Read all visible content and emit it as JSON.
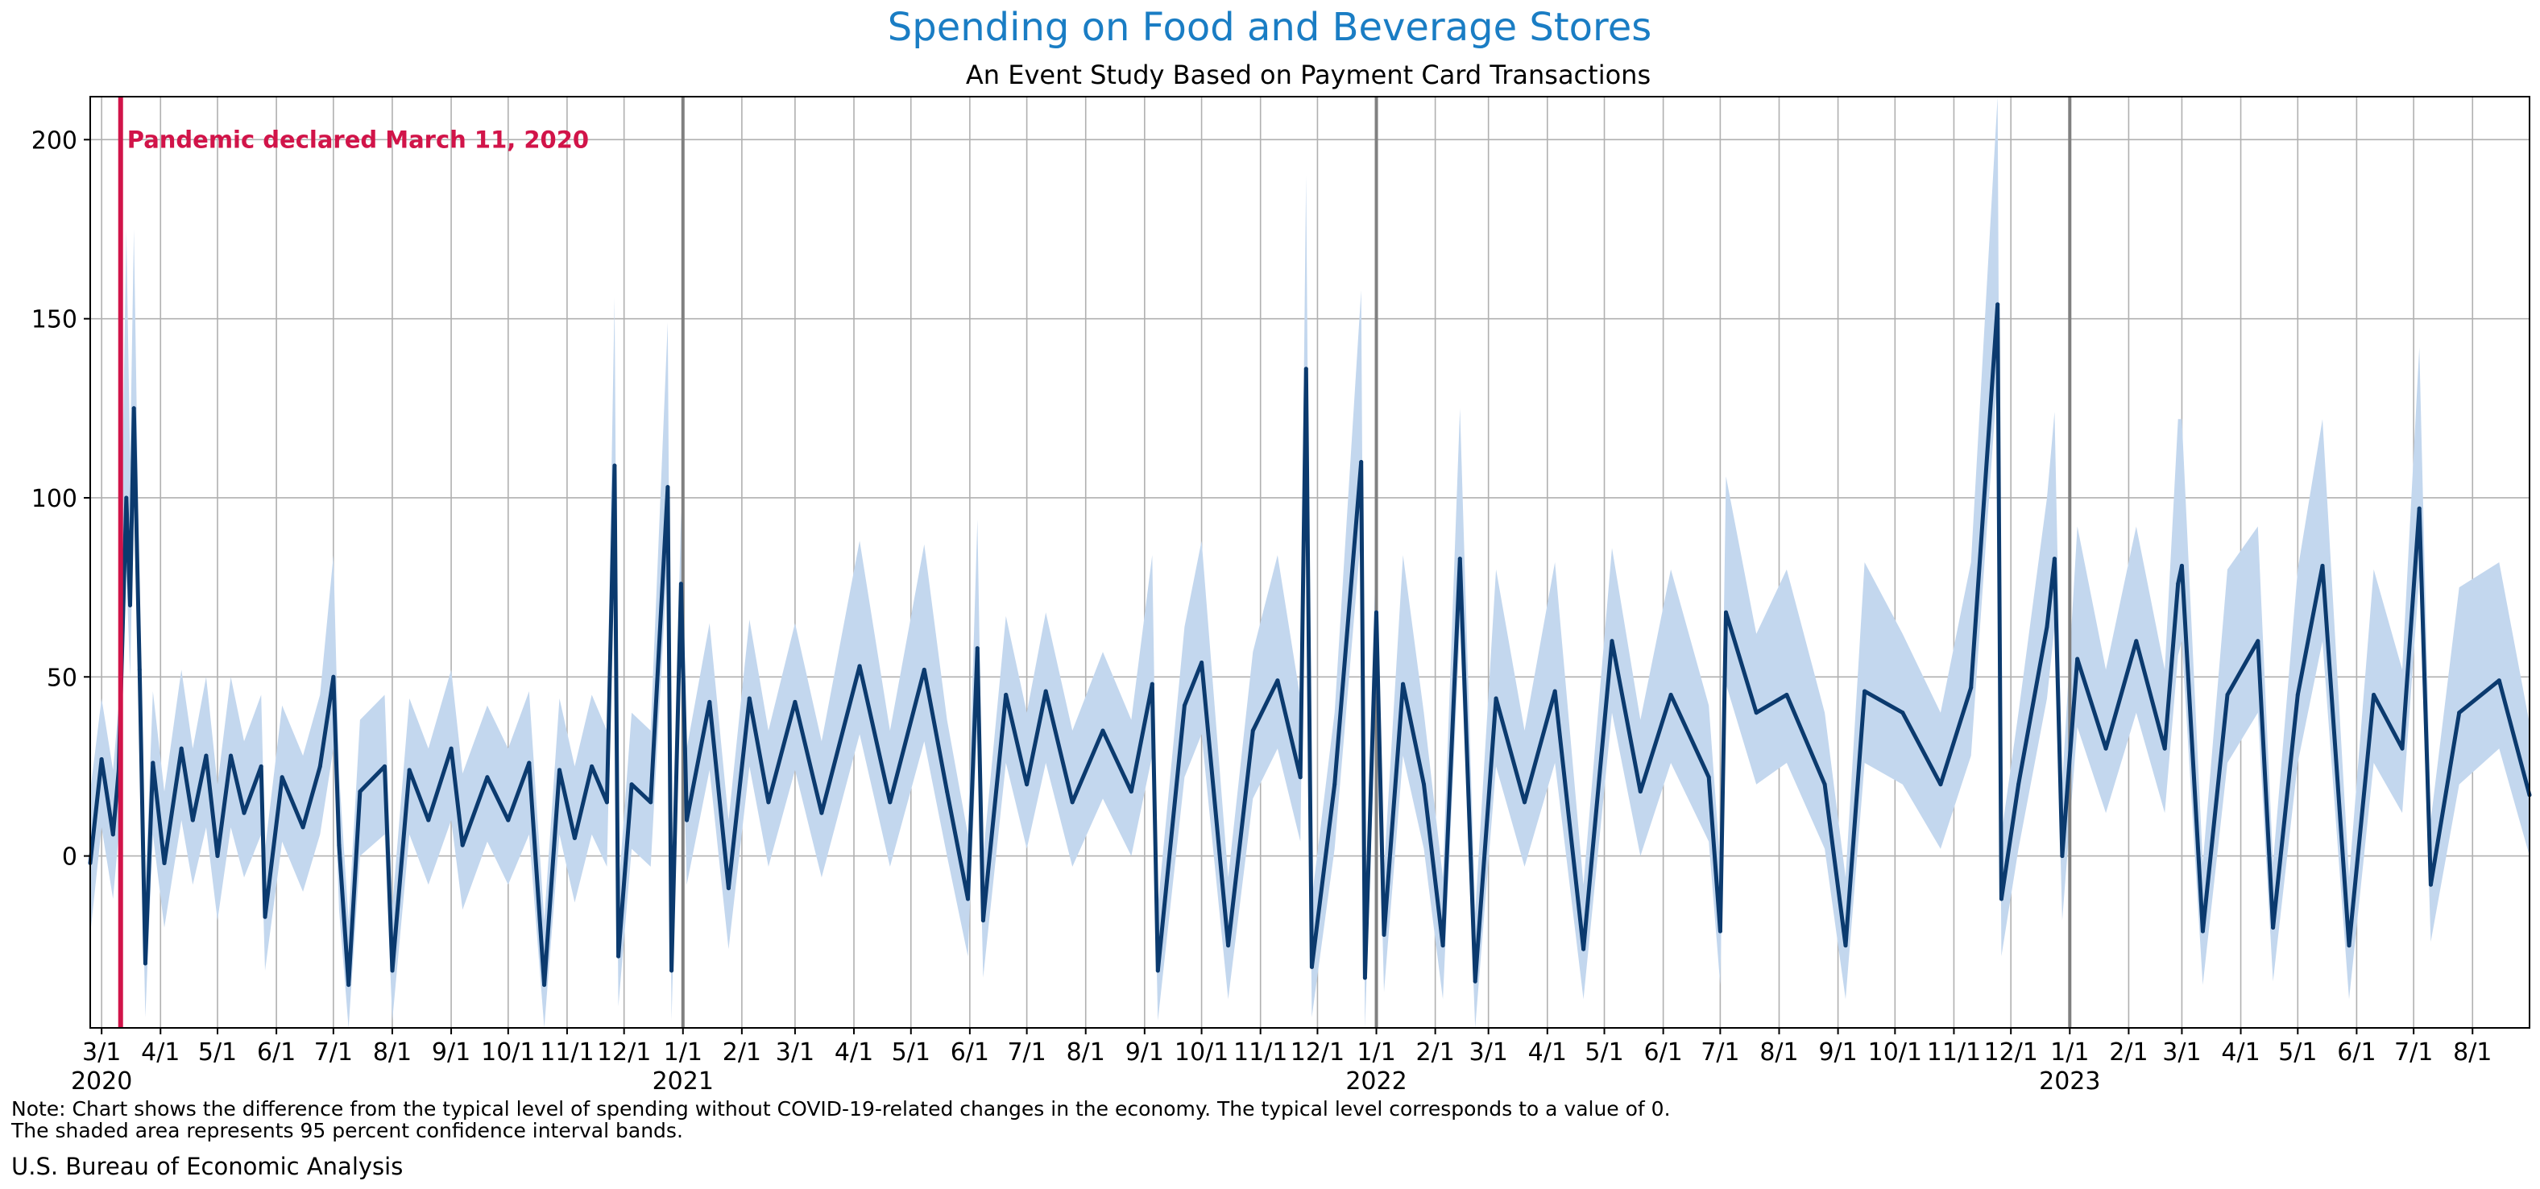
{
  "chart_data": {
    "type": "line",
    "title": "Spending on Food and Beverage Stores",
    "subtitle": "An Event Study Based on Payment Card Transactions",
    "xlabel": "",
    "ylabel": "",
    "x_range": [
      "2020-02-24",
      "2023-08-31"
    ],
    "ylim": [
      -48,
      212
    ],
    "y_ticks": [
      0,
      50,
      100,
      150,
      200
    ],
    "x_ticks": [
      {
        "date": "2020-03-01",
        "label": "3/1",
        "year": "2020"
      },
      {
        "date": "2020-04-01",
        "label": "4/1"
      },
      {
        "date": "2020-05-01",
        "label": "5/1"
      },
      {
        "date": "2020-06-01",
        "label": "6/1"
      },
      {
        "date": "2020-07-01",
        "label": "7/1"
      },
      {
        "date": "2020-08-01",
        "label": "8/1"
      },
      {
        "date": "2020-09-01",
        "label": "9/1"
      },
      {
        "date": "2020-10-01",
        "label": "10/1"
      },
      {
        "date": "2020-11-01",
        "label": "11/1"
      },
      {
        "date": "2020-12-01",
        "label": "12/1"
      },
      {
        "date": "2021-01-01",
        "label": "1/1",
        "year": "2021"
      },
      {
        "date": "2021-02-01",
        "label": "2/1"
      },
      {
        "date": "2021-03-01",
        "label": "3/1"
      },
      {
        "date": "2021-04-01",
        "label": "4/1"
      },
      {
        "date": "2021-05-01",
        "label": "5/1"
      },
      {
        "date": "2021-06-01",
        "label": "6/1"
      },
      {
        "date": "2021-07-01",
        "label": "7/1"
      },
      {
        "date": "2021-08-01",
        "label": "8/1"
      },
      {
        "date": "2021-09-01",
        "label": "9/1"
      },
      {
        "date": "2021-10-01",
        "label": "10/1"
      },
      {
        "date": "2021-11-01",
        "label": "11/1"
      },
      {
        "date": "2021-12-01",
        "label": "12/1"
      },
      {
        "date": "2022-01-01",
        "label": "1/1",
        "year": "2022"
      },
      {
        "date": "2022-02-01",
        "label": "2/1"
      },
      {
        "date": "2022-03-01",
        "label": "3/1"
      },
      {
        "date": "2022-04-01",
        "label": "4/1"
      },
      {
        "date": "2022-05-01",
        "label": "5/1"
      },
      {
        "date": "2022-06-01",
        "label": "6/1"
      },
      {
        "date": "2022-07-01",
        "label": "7/1"
      },
      {
        "date": "2022-08-01",
        "label": "8/1"
      },
      {
        "date": "2022-09-01",
        "label": "9/1"
      },
      {
        "date": "2022-10-01",
        "label": "10/1"
      },
      {
        "date": "2022-11-01",
        "label": "11/1"
      },
      {
        "date": "2022-12-01",
        "label": "12/1"
      },
      {
        "date": "2023-01-01",
        "label": "1/1",
        "year": "2023"
      },
      {
        "date": "2023-02-01",
        "label": "2/1"
      },
      {
        "date": "2023-03-01",
        "label": "3/1"
      },
      {
        "date": "2023-04-01",
        "label": "4/1"
      },
      {
        "date": "2023-05-01",
        "label": "5/1"
      },
      {
        "date": "2023-06-01",
        "label": "6/1"
      },
      {
        "date": "2023-07-01",
        "label": "7/1"
      },
      {
        "date": "2023-08-01",
        "label": "8/1"
      }
    ],
    "year_boundaries": [
      "2021-01-01",
      "2022-01-01",
      "2023-01-01"
    ],
    "event": {
      "date": "2020-03-11",
      "label": "Pandemic declared March 11, 2020"
    },
    "grid": true,
    "series": [
      {
        "points": [
          [
            "2020-02-24",
            -2,
            -22,
            18
          ],
          [
            "2020-03-01",
            27,
            8,
            44
          ],
          [
            "2020-03-07",
            6,
            -12,
            24
          ],
          [
            "2020-03-10",
            24,
            6,
            42
          ],
          [
            "2020-03-14",
            100,
            80,
            175
          ],
          [
            "2020-03-16",
            70,
            50,
            110
          ],
          [
            "2020-03-18",
            125,
            100,
            175
          ],
          [
            "2020-03-21",
            52,
            32,
            72
          ],
          [
            "2020-03-24",
            -30,
            -45,
            -10
          ],
          [
            "2020-03-28",
            26,
            6,
            46
          ],
          [
            "2020-04-03",
            -2,
            -20,
            18
          ],
          [
            "2020-04-12",
            30,
            10,
            52
          ],
          [
            "2020-04-18",
            10,
            -8,
            30
          ],
          [
            "2020-04-25",
            28,
            8,
            50
          ],
          [
            "2020-05-01",
            0,
            -18,
            20
          ],
          [
            "2020-05-08",
            28,
            8,
            50
          ],
          [
            "2020-05-15",
            12,
            -6,
            32
          ],
          [
            "2020-05-24",
            25,
            6,
            45
          ],
          [
            "2020-05-26",
            -17,
            -32,
            2
          ],
          [
            "2020-06-04",
            22,
            4,
            42
          ],
          [
            "2020-06-15",
            8,
            -10,
            28
          ],
          [
            "2020-06-24",
            25,
            6,
            45
          ],
          [
            "2020-07-01",
            50,
            30,
            84
          ],
          [
            "2020-07-04",
            3,
            -15,
            23
          ],
          [
            "2020-07-09",
            -36,
            -48,
            -18
          ],
          [
            "2020-07-15",
            18,
            0,
            38
          ],
          [
            "2020-07-28",
            25,
            6,
            45
          ],
          [
            "2020-08-01",
            -32,
            -46,
            -14
          ],
          [
            "2020-08-10",
            24,
            6,
            44
          ],
          [
            "2020-08-20",
            10,
            -8,
            30
          ],
          [
            "2020-09-01",
            30,
            10,
            52
          ],
          [
            "2020-09-07",
            3,
            -15,
            23
          ],
          [
            "2020-09-20",
            22,
            4,
            42
          ],
          [
            "2020-10-01",
            10,
            -8,
            30
          ],
          [
            "2020-10-12",
            26,
            6,
            46
          ],
          [
            "2020-10-20",
            -36,
            -48,
            -18
          ],
          [
            "2020-10-28",
            24,
            6,
            44
          ],
          [
            "2020-11-05",
            5,
            -13,
            25
          ],
          [
            "2020-11-14",
            25,
            6,
            45
          ],
          [
            "2020-11-22",
            15,
            -3,
            35
          ],
          [
            "2020-11-26",
            109,
            90,
            156
          ],
          [
            "2020-11-28",
            -28,
            -42,
            -10
          ],
          [
            "2020-12-05",
            20,
            2,
            40
          ],
          [
            "2020-12-15",
            15,
            -3,
            35
          ],
          [
            "2020-12-24",
            103,
            84,
            149
          ],
          [
            "2020-12-26",
            -32,
            -46,
            -14
          ],
          [
            "2020-12-31",
            76,
            56,
            96
          ],
          [
            "2021-01-03",
            10,
            -8,
            30
          ],
          [
            "2021-01-15",
            43,
            24,
            65
          ],
          [
            "2021-01-25",
            -9,
            -26,
            10
          ],
          [
            "2021-02-05",
            44,
            25,
            66
          ],
          [
            "2021-02-15",
            15,
            -3,
            35
          ],
          [
            "2021-03-01",
            43,
            24,
            65
          ],
          [
            "2021-03-15",
            12,
            -6,
            32
          ],
          [
            "2021-04-04",
            53,
            34,
            88
          ],
          [
            "2021-04-20",
            15,
            -3,
            35
          ],
          [
            "2021-05-08",
            52,
            32,
            87
          ],
          [
            "2021-05-20",
            18,
            0,
            38
          ],
          [
            "2021-05-31",
            -12,
            -28,
            6
          ],
          [
            "2021-06-05",
            58,
            38,
            94
          ],
          [
            "2021-06-08",
            -18,
            -34,
            0
          ],
          [
            "2021-06-20",
            45,
            26,
            67
          ],
          [
            "2021-07-01",
            20,
            2,
            40
          ],
          [
            "2021-07-11",
            46,
            26,
            68
          ],
          [
            "2021-07-25",
            15,
            -3,
            35
          ],
          [
            "2021-08-10",
            35,
            16,
            57
          ],
          [
            "2021-08-25",
            18,
            0,
            38
          ],
          [
            "2021-09-05",
            48,
            28,
            84
          ],
          [
            "2021-09-08",
            -32,
            -46,
            -14
          ],
          [
            "2021-09-22",
            42,
            22,
            64
          ],
          [
            "2021-10-01",
            54,
            34,
            88
          ],
          [
            "2021-10-15",
            -25,
            -40,
            -6
          ],
          [
            "2021-10-28",
            35,
            16,
            57
          ],
          [
            "2021-11-10",
            49,
            30,
            84
          ],
          [
            "2021-11-22",
            22,
            4,
            44
          ],
          [
            "2021-11-25",
            136,
            116,
            190
          ],
          [
            "2021-11-28",
            -31,
            -45,
            -12
          ],
          [
            "2021-12-10",
            20,
            2,
            40
          ],
          [
            "2021-12-24",
            110,
            90,
            158
          ],
          [
            "2021-12-26",
            -34,
            -48,
            -16
          ],
          [
            "2022-01-01",
            68,
            48,
            88
          ],
          [
            "2022-01-05",
            -22,
            -38,
            -4
          ],
          [
            "2022-01-15",
            48,
            28,
            84
          ],
          [
            "2022-01-26",
            20,
            2,
            40
          ],
          [
            "2022-02-05",
            -25,
            -40,
            -6
          ],
          [
            "2022-02-14",
            83,
            64,
            125
          ],
          [
            "2022-02-22",
            -35,
            -48,
            -16
          ],
          [
            "2022-03-05",
            44,
            25,
            80
          ],
          [
            "2022-03-20",
            15,
            -3,
            35
          ],
          [
            "2022-04-05",
            46,
            26,
            82
          ],
          [
            "2022-04-20",
            -26,
            -40,
            -8
          ],
          [
            "2022-05-05",
            60,
            40,
            86
          ],
          [
            "2022-05-20",
            18,
            0,
            38
          ],
          [
            "2022-06-05",
            45,
            26,
            80
          ],
          [
            "2022-06-25",
            22,
            4,
            42
          ],
          [
            "2022-07-01",
            -21,
            -36,
            -2
          ],
          [
            "2022-07-04",
            68,
            48,
            106
          ],
          [
            "2022-07-20",
            40,
            20,
            62
          ],
          [
            "2022-08-05",
            45,
            26,
            80
          ],
          [
            "2022-08-25",
            20,
            2,
            40
          ],
          [
            "2022-09-05",
            -25,
            -40,
            -6
          ],
          [
            "2022-09-15",
            46,
            26,
            82
          ],
          [
            "2022-10-05",
            40,
            20,
            62
          ],
          [
            "2022-10-25",
            20,
            2,
            40
          ],
          [
            "2022-11-10",
            47,
            28,
            82
          ],
          [
            "2022-11-24",
            154,
            134,
            212
          ],
          [
            "2022-11-26",
            -12,
            -28,
            6
          ],
          [
            "2022-12-05",
            20,
            2,
            40
          ],
          [
            "2022-12-20",
            64,
            44,
            100
          ],
          [
            "2022-12-24",
            83,
            64,
            124
          ],
          [
            "2022-12-28",
            0,
            -18,
            20
          ],
          [
            "2023-01-05",
            55,
            36,
            92
          ],
          [
            "2023-01-20",
            30,
            12,
            52
          ],
          [
            "2023-02-05",
            60,
            40,
            92
          ],
          [
            "2023-02-20",
            30,
            12,
            52
          ],
          [
            "2023-02-27",
            76,
            56,
            122
          ],
          [
            "2023-03-01",
            81,
            60,
            122
          ],
          [
            "2023-03-12",
            -21,
            -36,
            -2
          ],
          [
            "2023-03-25",
            45,
            26,
            80
          ],
          [
            "2023-04-10",
            60,
            40,
            92
          ],
          [
            "2023-04-18",
            -20,
            -35,
            -2
          ],
          [
            "2023-05-01",
            45,
            26,
            80
          ],
          [
            "2023-05-14",
            81,
            60,
            122
          ],
          [
            "2023-05-28",
            -25,
            -40,
            -6
          ],
          [
            "2023-06-10",
            45,
            26,
            80
          ],
          [
            "2023-06-25",
            30,
            12,
            52
          ],
          [
            "2023-07-04",
            97,
            78,
            142
          ],
          [
            "2023-07-10",
            -8,
            -24,
            10
          ],
          [
            "2023-07-25",
            40,
            20,
            75
          ],
          [
            "2023-08-15",
            49,
            30,
            82
          ],
          [
            "2023-08-31",
            17,
            0,
            37
          ]
        ]
      }
    ],
    "colors": {
      "title": "#1a7dc4",
      "line": "#0b3a6e",
      "band": "#c3d7ee",
      "event_line": "#d11449",
      "grid": "#b0b0b0",
      "year_line": "#808080"
    }
  },
  "footer": {
    "note_line1": "Note: Chart shows the difference from the typical level of spending without COVID-19-related changes in the economy. The typical level corresponds to a value of 0.",
    "note_line2": "The shaded area represents 95 percent confidence interval bands.",
    "source": "U.S. Bureau of Economic Analysis"
  }
}
